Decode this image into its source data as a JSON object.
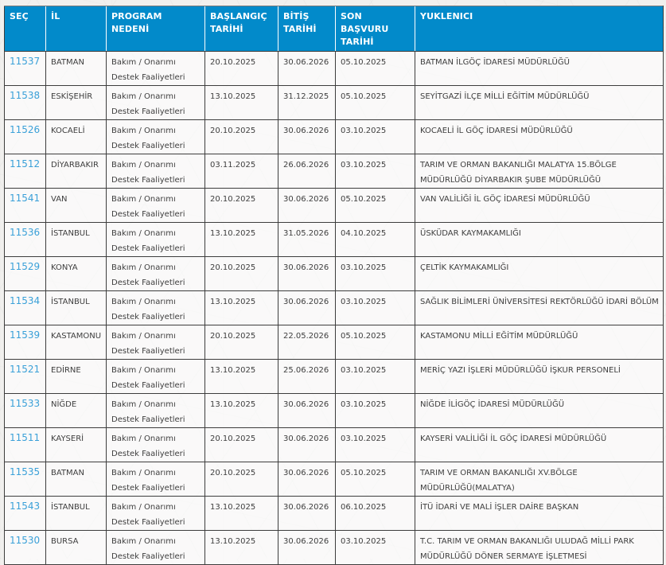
{
  "colors": {
    "header_bg": "#028aca",
    "header_text": "#ffffff",
    "link_blue": "#3aa0d8",
    "body_text": "#3e3e3e",
    "border_dark": "#3d3d3d",
    "page_bg": "#f1f0ee"
  },
  "table": {
    "columns": [
      {
        "key": "id",
        "label": "SEÇ"
      },
      {
        "key": "il",
        "label": "İL"
      },
      {
        "key": "program",
        "label": "PROGRAM NEDENİ"
      },
      {
        "key": "start",
        "label": "BAŞLANGIÇ TARİHİ"
      },
      {
        "key": "end",
        "label": "BİTİŞ TARİHİ"
      },
      {
        "key": "deadline",
        "label": "SON BAŞVURU TARİHİ"
      },
      {
        "key": "contractor",
        "label": "YUKLENICI"
      }
    ],
    "rows": [
      {
        "id": "11537",
        "il": "BATMAN",
        "program": "Bakım / Onarımı Destek Faaliyetleri",
        "start": "20.10.2025",
        "end": "30.06.2026",
        "deadline": "05.10.2025",
        "contractor": "BATMAN İLGÖÇ İDARESİ MÜDÜRLÜĞÜ"
      },
      {
        "id": "11538",
        "il": "ESKİŞEHİR",
        "program": "Bakım / Onarımı Destek Faaliyetleri",
        "start": "13.10.2025",
        "end": "31.12.2025",
        "deadline": "05.10.2025",
        "contractor": "SEYİTGAZİ İLÇE MİLLİ EĞİTİM MÜDÜRLÜĞÜ"
      },
      {
        "id": "11526",
        "il": "KOCAELİ",
        "program": "Bakım / Onarımı Destek Faaliyetleri",
        "start": "20.10.2025",
        "end": "30.06.2026",
        "deadline": "03.10.2025",
        "contractor": "KOCAELİ İL GÖÇ İDARESİ MÜDÜRLÜĞÜ"
      },
      {
        "id": "11512",
        "il": "DİYARBAKIR",
        "program": "Bakım / Onarımı Destek Faaliyetleri",
        "start": "03.11.2025",
        "end": "26.06.2026",
        "deadline": "03.10.2025",
        "contractor": "TARIM VE ORMAN BAKANLIĞI MALATYA 15.BÖLGE MÜDÜRLÜĞÜ DİYARBAKIR ŞUBE MÜDÜRLÜĞÜ"
      },
      {
        "id": "11541",
        "il": "VAN",
        "program": "Bakım / Onarımı Destek Faaliyetleri",
        "start": "20.10.2025",
        "end": "30.06.2026",
        "deadline": "05.10.2025",
        "contractor": "VAN VALİLİĞİ İL GÖÇ İDARESİ MÜDÜRLÜĞÜ"
      },
      {
        "id": "11536",
        "il": "İSTANBUL",
        "program": "Bakım / Onarımı Destek Faaliyetleri",
        "start": "13.10.2025",
        "end": "31.05.2026",
        "deadline": "04.10.2025",
        "contractor": "ÜSKÜDAR KAYMAKAMLIĞI"
      },
      {
        "id": "11529",
        "il": "KONYA",
        "program": "Bakım / Onarımı Destek Faaliyetleri",
        "start": "20.10.2025",
        "end": "30.06.2026",
        "deadline": "03.10.2025",
        "contractor": "ÇELTİK KAYMAKAMLIĞI"
      },
      {
        "id": "11534",
        "il": "İSTANBUL",
        "program": "Bakım / Onarımı Destek Faaliyetleri",
        "start": "13.10.2025",
        "end": "30.06.2026",
        "deadline": "03.10.2025",
        "contractor": "SAĞLIK BİLİMLERİ ÜNİVERSİTESİ REKTÖRLÜĞÜ İDARİ BÖLÜM"
      },
      {
        "id": "11539",
        "il": "KASTAMONU",
        "program": "Bakım / Onarımı Destek Faaliyetleri",
        "start": "20.10.2025",
        "end": "22.05.2026",
        "deadline": "05.10.2025",
        "contractor": "KASTAMONU MİLLİ EĞİTİM MÜDÜRLÜĞÜ"
      },
      {
        "id": "11521",
        "il": "EDİRNE",
        "program": "Bakım / Onarımı Destek Faaliyetleri",
        "start": "13.10.2025",
        "end": "25.06.2026",
        "deadline": "03.10.2025",
        "contractor": "MERİÇ YAZI İŞLERİ MÜDÜRLÜĞÜ İŞKUR PERSONELİ"
      },
      {
        "id": "11533",
        "il": "NİĞDE",
        "program": "Bakım / Onarımı Destek Faaliyetleri",
        "start": "13.10.2025",
        "end": "30.06.2026",
        "deadline": "03.10.2025",
        "contractor": "NİĞDE İLİGÖÇ İDARESİ MÜDÜRLÜĞÜ"
      },
      {
        "id": "11511",
        "il": "KAYSERİ",
        "program": "Bakım / Onarımı Destek Faaliyetleri",
        "start": "20.10.2025",
        "end": "30.06.2026",
        "deadline": "03.10.2025",
        "contractor": "KAYSERİ VALİLİĞİ İL GÖÇ İDARESİ MÜDÜRLÜĞÜ"
      },
      {
        "id": "11535",
        "il": "BATMAN",
        "program": "Bakım / Onarımı Destek Faaliyetleri",
        "start": "20.10.2025",
        "end": "30.06.2026",
        "deadline": "05.10.2025",
        "contractor": "TARIM VE ORMAN BAKANLIĞI XV.BÖLGE MÜDÜRLÜĞÜ(MALATYA)"
      },
      {
        "id": "11543",
        "il": "İSTANBUL",
        "program": "Bakım / Onarımı Destek Faaliyetleri",
        "start": "13.10.2025",
        "end": "30.06.2026",
        "deadline": "06.10.2025",
        "contractor": "İTÜ İDARİ VE MALİ İŞLER DAİRE BAŞKAN"
      },
      {
        "id": "11530",
        "il": "BURSA",
        "program": "Bakım / Onarımı Destek Faaliyetleri",
        "start": "13.10.2025",
        "end": "30.06.2026",
        "deadline": "03.10.2025",
        "contractor": "T.C. TARIM VE ORMAN BAKANLIĞI ULUDAĞ MİLLİ PARK MÜDÜRLÜĞÜ DÖNER SERMAYE İŞLETMESİ"
      }
    ]
  }
}
